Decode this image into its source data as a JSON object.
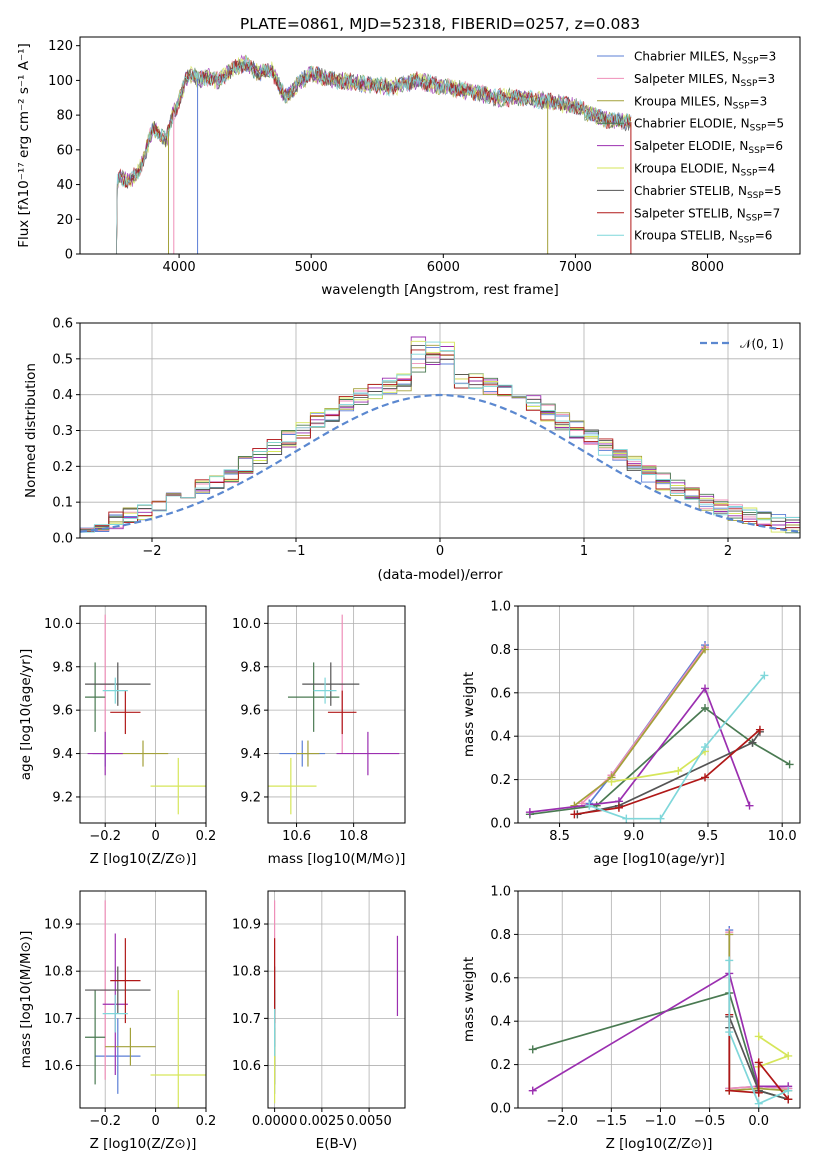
{
  "figure": {
    "title": "PLATE=0861, MJD=52318, FIBERID=0257, z=0.083"
  },
  "models": [
    {
      "name": "Chabrier MILES",
      "n_ssp": "3",
      "color": "#5b7fd6"
    },
    {
      "name": "Salpeter MILES",
      "n_ssp": "3",
      "color": "#ef8eb8"
    },
    {
      "name": "Kroupa MILES",
      "n_ssp": "3",
      "color": "#a3a13a"
    },
    {
      "name": "Chabrier ELODIE",
      "n_ssp": "5",
      "color": "#4a7a52"
    },
    {
      "name": "Salpeter ELODIE",
      "n_ssp": "6",
      "color": "#9b2fb0"
    },
    {
      "name": "Kroupa ELODIE",
      "n_ssp": "4",
      "color": "#d6e65a"
    },
    {
      "name": "Chabrier STELIB",
      "n_ssp": "5",
      "color": "#555555"
    },
    {
      "name": "Salpeter STELIB",
      "n_ssp": "7",
      "color": "#b01818"
    },
    {
      "name": "Kroupa STELIB",
      "n_ssp": "6",
      "color": "#7fd7da"
    }
  ],
  "chart_data": [
    {
      "id": "spectrum",
      "type": "line",
      "xlabel": "wavelength [Angstrom, rest frame]",
      "ylabel": "Flux [fλ10⁻¹⁷ erg cm⁻² s⁻¹ A⁻¹]",
      "xlim": [
        3250,
        8700
      ],
      "ylim": [
        0,
        125
      ],
      "xticks": [
        4000,
        5000,
        6000,
        7000,
        8000
      ],
      "yticks": [
        0,
        20,
        40,
        60,
        80,
        100,
        120
      ],
      "x": [
        3520,
        3560,
        3600,
        3650,
        3700,
        3750,
        3800,
        3850,
        3900,
        3950,
        4000,
        4050,
        4100,
        4150,
        4200,
        4300,
        4400,
        4500,
        4600,
        4700,
        4800,
        4900,
        5000,
        5200,
        5400,
        5600,
        5800,
        6000,
        6200,
        6400,
        6600,
        6800,
        7000,
        7200,
        7400
      ],
      "y": [
        40,
        45,
        42,
        44,
        48,
        60,
        72,
        70,
        65,
        80,
        88,
        100,
        104,
        100,
        102,
        100,
        106,
        110,
        104,
        106,
        90,
        98,
        104,
        100,
        98,
        96,
        100,
        96,
        94,
        90,
        90,
        88,
        85,
        78,
        76
      ],
      "legend_position": "upper right"
    },
    {
      "id": "residual_histogram",
      "type": "line",
      "xlabel": "(data-model)/error",
      "ylabel": "Normed distribution",
      "xlim": [
        -2.5,
        2.5
      ],
      "ylim": [
        0,
        0.6
      ],
      "xticks": [
        -2,
        -1,
        0,
        1,
        2
      ],
      "yticks": [
        0.0,
        0.1,
        0.2,
        0.3,
        0.4,
        0.5,
        0.6
      ],
      "bin_width": 0.1,
      "reference_label": "𝒩(0, 1)",
      "reference_color": "#5b88d0",
      "legend_position": "upper right"
    },
    {
      "id": "age_vs_metallicity",
      "type": "scatter",
      "xlabel": "Z [log10(Z/Z⊙)]",
      "ylabel": "age  [log10(age/yr)]",
      "xlim": [
        -0.3,
        0.2
      ],
      "ylim": [
        9.08,
        10.08
      ],
      "xticks": [
        -0.2,
        0.0,
        0.2
      ],
      "yticks": [
        9.2,
        9.4,
        9.6,
        9.8,
        10.0
      ],
      "points": [
        {
          "x": -0.2,
          "xerr": 0.05,
          "y": 9.4,
          "yerr": 0.06
        },
        {
          "x": -0.2,
          "xerr": 0.02,
          "y": 9.72,
          "yerr": 0.32
        },
        {
          "x": -0.05,
          "xerr": 0.1,
          "y": 9.4,
          "yerr": 0.06
        },
        {
          "x": -0.24,
          "xerr": 0.04,
          "y": 9.66,
          "yerr": 0.16
        },
        {
          "x": -0.2,
          "xerr": 0.07,
          "y": 9.4,
          "yerr": 0.1
        },
        {
          "x": 0.09,
          "xerr": 0.11,
          "y": 9.25,
          "yerr": 0.13
        },
        {
          "x": -0.15,
          "xerr": 0.13,
          "y": 9.72,
          "yerr": 0.1
        },
        {
          "x": -0.12,
          "xerr": 0.06,
          "y": 9.59,
          "yerr": 0.1
        },
        {
          "x": -0.16,
          "xerr": 0.05,
          "y": 9.69,
          "yerr": 0.06
        }
      ]
    },
    {
      "id": "age_vs_mass",
      "type": "scatter",
      "xlabel": "mass [log10(M/M⊙)]",
      "ylabel": "",
      "xlim": [
        10.5,
        10.98
      ],
      "ylim": [
        9.08,
        10.08
      ],
      "xticks": [
        10.6,
        10.8
      ],
      "yticks": [
        9.2,
        9.4,
        9.6,
        9.8,
        10.0
      ],
      "points": [
        {
          "x": 10.62,
          "xerr": 0.08,
          "y": 9.4,
          "yerr": 0.06
        },
        {
          "x": 10.76,
          "xerr": 0.01,
          "y": 9.72,
          "yerr": 0.32
        },
        {
          "x": 10.64,
          "xerr": 0.04,
          "y": 9.4,
          "yerr": 0.06
        },
        {
          "x": 10.66,
          "xerr": 0.09,
          "y": 9.66,
          "yerr": 0.16
        },
        {
          "x": 10.85,
          "xerr": 0.11,
          "y": 9.4,
          "yerr": 0.1
        },
        {
          "x": 10.58,
          "xerr": 0.09,
          "y": 9.25,
          "yerr": 0.13
        },
        {
          "x": 10.72,
          "xerr": 0.1,
          "y": 9.72,
          "yerr": 0.1
        },
        {
          "x": 10.76,
          "xerr": 0.05,
          "y": 9.59,
          "yerr": 0.1
        },
        {
          "x": 10.7,
          "xerr": 0.04,
          "y": 9.69,
          "yerr": 0.06
        }
      ]
    },
    {
      "id": "mass_weight_vs_age",
      "type": "line",
      "xlabel": "age  [log10(age/yr)]",
      "ylabel": "mass weight",
      "xlim": [
        8.22,
        10.12
      ],
      "ylim": [
        0.0,
        1.0
      ],
      "xticks": [
        8.5,
        9.0,
        9.5,
        10.0
      ],
      "yticks": [
        0.0,
        0.2,
        0.4,
        0.6,
        0.8,
        1.0
      ],
      "series": [
        {
          "x": [
            8.7,
            8.85,
            9.48
          ],
          "y": [
            0.09,
            0.22,
            0.82
          ]
        },
        {
          "x": [
            8.65,
            8.85,
            9.48
          ],
          "y": [
            0.09,
            0.22,
            0.81
          ]
        },
        {
          "x": [
            8.6,
            8.85,
            9.48
          ],
          "y": [
            0.08,
            0.21,
            0.8
          ]
        },
        {
          "x": [
            8.3,
            8.75,
            9.48,
            9.8,
            10.05
          ],
          "y": [
            0.04,
            0.08,
            0.53,
            0.37,
            0.27
          ]
        },
        {
          "x": [
            8.3,
            8.9,
            9.48,
            9.78
          ],
          "y": [
            0.05,
            0.1,
            0.62,
            0.08
          ]
        },
        {
          "x": [
            8.85,
            9.3,
            9.48
          ],
          "y": [
            0.19,
            0.24,
            0.33
          ]
        },
        {
          "x": [
            8.62,
            8.9,
            9.8,
            9.85
          ],
          "y": [
            0.04,
            0.08,
            0.37,
            0.42
          ]
        },
        {
          "x": [
            8.6,
            8.9,
            9.48,
            9.85
          ],
          "y": [
            0.04,
            0.07,
            0.21,
            0.43
          ]
        },
        {
          "x": [
            8.7,
            8.95,
            9.18,
            9.48,
            9.88
          ],
          "y": [
            0.08,
            0.02,
            0.02,
            0.35,
            0.68
          ]
        }
      ]
    },
    {
      "id": "mass_vs_metallicity",
      "type": "scatter",
      "xlabel": "Z [log10(Z/Z⊙)]",
      "ylabel": "mass [log10(M/M⊙)]",
      "xlim": [
        -0.3,
        0.2
      ],
      "ylim": [
        10.51,
        10.97
      ],
      "xticks": [
        -0.2,
        0.0,
        0.2
      ],
      "yticks": [
        10.6,
        10.7,
        10.8,
        10.9
      ],
      "points": [
        {
          "x": -0.15,
          "xerr": 0.09,
          "y": 10.62,
          "yerr": 0.08
        },
        {
          "x": -0.2,
          "xerr": 0.02,
          "y": 10.76,
          "yerr": 0.19
        },
        {
          "x": -0.1,
          "xerr": 0.1,
          "y": 10.64,
          "yerr": 0.04
        },
        {
          "x": -0.24,
          "xerr": 0.04,
          "y": 10.66,
          "yerr": 0.1
        },
        {
          "x": -0.16,
          "xerr": 0.05,
          "y": 10.73,
          "yerr": 0.15
        },
        {
          "x": 0.09,
          "xerr": 0.11,
          "y": 10.58,
          "yerr": 0.18
        },
        {
          "x": -0.15,
          "xerr": 0.13,
          "y": 10.76,
          "yerr": 0.05
        },
        {
          "x": -0.12,
          "xerr": 0.06,
          "y": 10.78,
          "yerr": 0.09
        },
        {
          "x": -0.16,
          "xerr": 0.05,
          "y": 10.71,
          "yerr": 0.04
        }
      ]
    },
    {
      "id": "mass_vs_ebv",
      "type": "scatter",
      "xlabel": "E(B-V)",
      "ylabel": "",
      "xlim": [
        -0.00035,
        0.0069
      ],
      "ylim": [
        10.51,
        10.97
      ],
      "xticks": [
        0.0,
        0.0025,
        0.005
      ],
      "xticklabels": [
        "0.0000",
        "0.0025",
        "0.0050"
      ],
      "yticks": [
        10.6,
        10.7,
        10.8,
        10.9
      ],
      "points": [
        {
          "x": 0.0,
          "y": 10.62,
          "yerr": 0.08
        },
        {
          "x": 0.0,
          "y": 10.76,
          "yerr": 0.19
        },
        {
          "x": 0.0,
          "y": 10.64,
          "yerr": 0.04
        },
        {
          "x": 0.0,
          "y": 10.66,
          "yerr": 0.1
        },
        {
          "x": 0.0065,
          "y": 10.79,
          "yerr": 0.085
        },
        {
          "x": 0.0,
          "y": 10.58,
          "yerr": 0.06
        },
        {
          "x": 0.0,
          "y": 10.76,
          "yerr": 0.05
        },
        {
          "x": 0.0,
          "y": 10.78,
          "yerr": 0.09
        },
        {
          "x": 0.0,
          "y": 10.67,
          "yerr": 0.05
        }
      ]
    },
    {
      "id": "mass_weight_vs_metallicity",
      "type": "line",
      "xlabel": "Z [log10(Z/Z⊙)]",
      "ylabel": "mass weight",
      "xlim": [
        -2.45,
        0.42
      ],
      "ylim": [
        0.0,
        1.0
      ],
      "xticks": [
        -2.0,
        -1.5,
        -1.0,
        -0.5,
        0.0
      ],
      "yticks": [
        0.0,
        0.2,
        0.4,
        0.6,
        0.8,
        1.0
      ],
      "series": [
        {
          "x": [
            -0.3,
            -0.3,
            0.0,
            0.3
          ],
          "y": [
            0.82,
            0.09,
            0.1,
            0.09
          ]
        },
        {
          "x": [
            -0.3,
            -0.3,
            0.0,
            0.3
          ],
          "y": [
            0.81,
            0.09,
            0.1,
            0.09
          ]
        },
        {
          "x": [
            -0.3,
            -0.3,
            0.0,
            0.3
          ],
          "y": [
            0.8,
            0.08,
            0.09,
            0.08
          ]
        },
        {
          "x": [
            -2.3,
            -0.3,
            0.0,
            0.3
          ],
          "y": [
            0.27,
            0.53,
            0.08,
            0.04
          ]
        },
        {
          "x": [
            -2.3,
            -0.3,
            0.0,
            0.3
          ],
          "y": [
            0.08,
            0.62,
            0.1,
            0.1
          ]
        },
        {
          "x": [
            0.0,
            0.3,
            0.0
          ],
          "y": [
            0.33,
            0.24,
            0.19
          ]
        },
        {
          "x": [
            -0.3,
            -0.3,
            0.0,
            0.3
          ],
          "y": [
            0.37,
            0.42,
            0.08,
            0.04
          ]
        },
        {
          "x": [
            -0.3,
            -0.3,
            0.0,
            0.0,
            0.3
          ],
          "y": [
            0.43,
            0.08,
            0.07,
            0.21,
            0.04
          ]
        },
        {
          "x": [
            -0.3,
            -0.3,
            0.0,
            0.3
          ],
          "y": [
            0.68,
            0.35,
            0.02,
            0.08
          ]
        }
      ]
    }
  ]
}
